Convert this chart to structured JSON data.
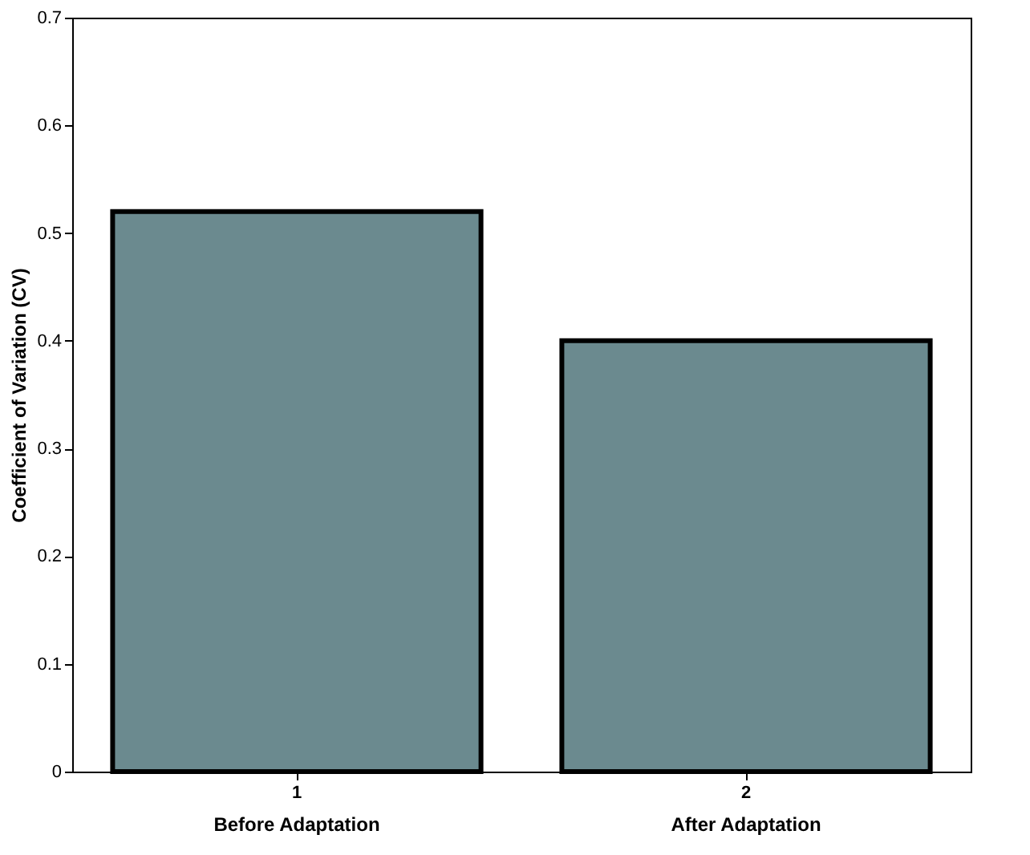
{
  "chart_data": {
    "type": "bar",
    "ylabel": "Coefficient of Variation (CV)",
    "categories": [
      "1",
      "2"
    ],
    "values": [
      0.52,
      0.4
    ],
    "color": "#6b8a8f",
    "ylim": [
      0,
      0.7
    ],
    "yticks": [
      0,
      0.1,
      0.2,
      0.3,
      0.4,
      0.5,
      0.6,
      0.7
    ],
    "grid": false,
    "annotations": [
      "Before Adaptation",
      "After Adaptation"
    ]
  }
}
